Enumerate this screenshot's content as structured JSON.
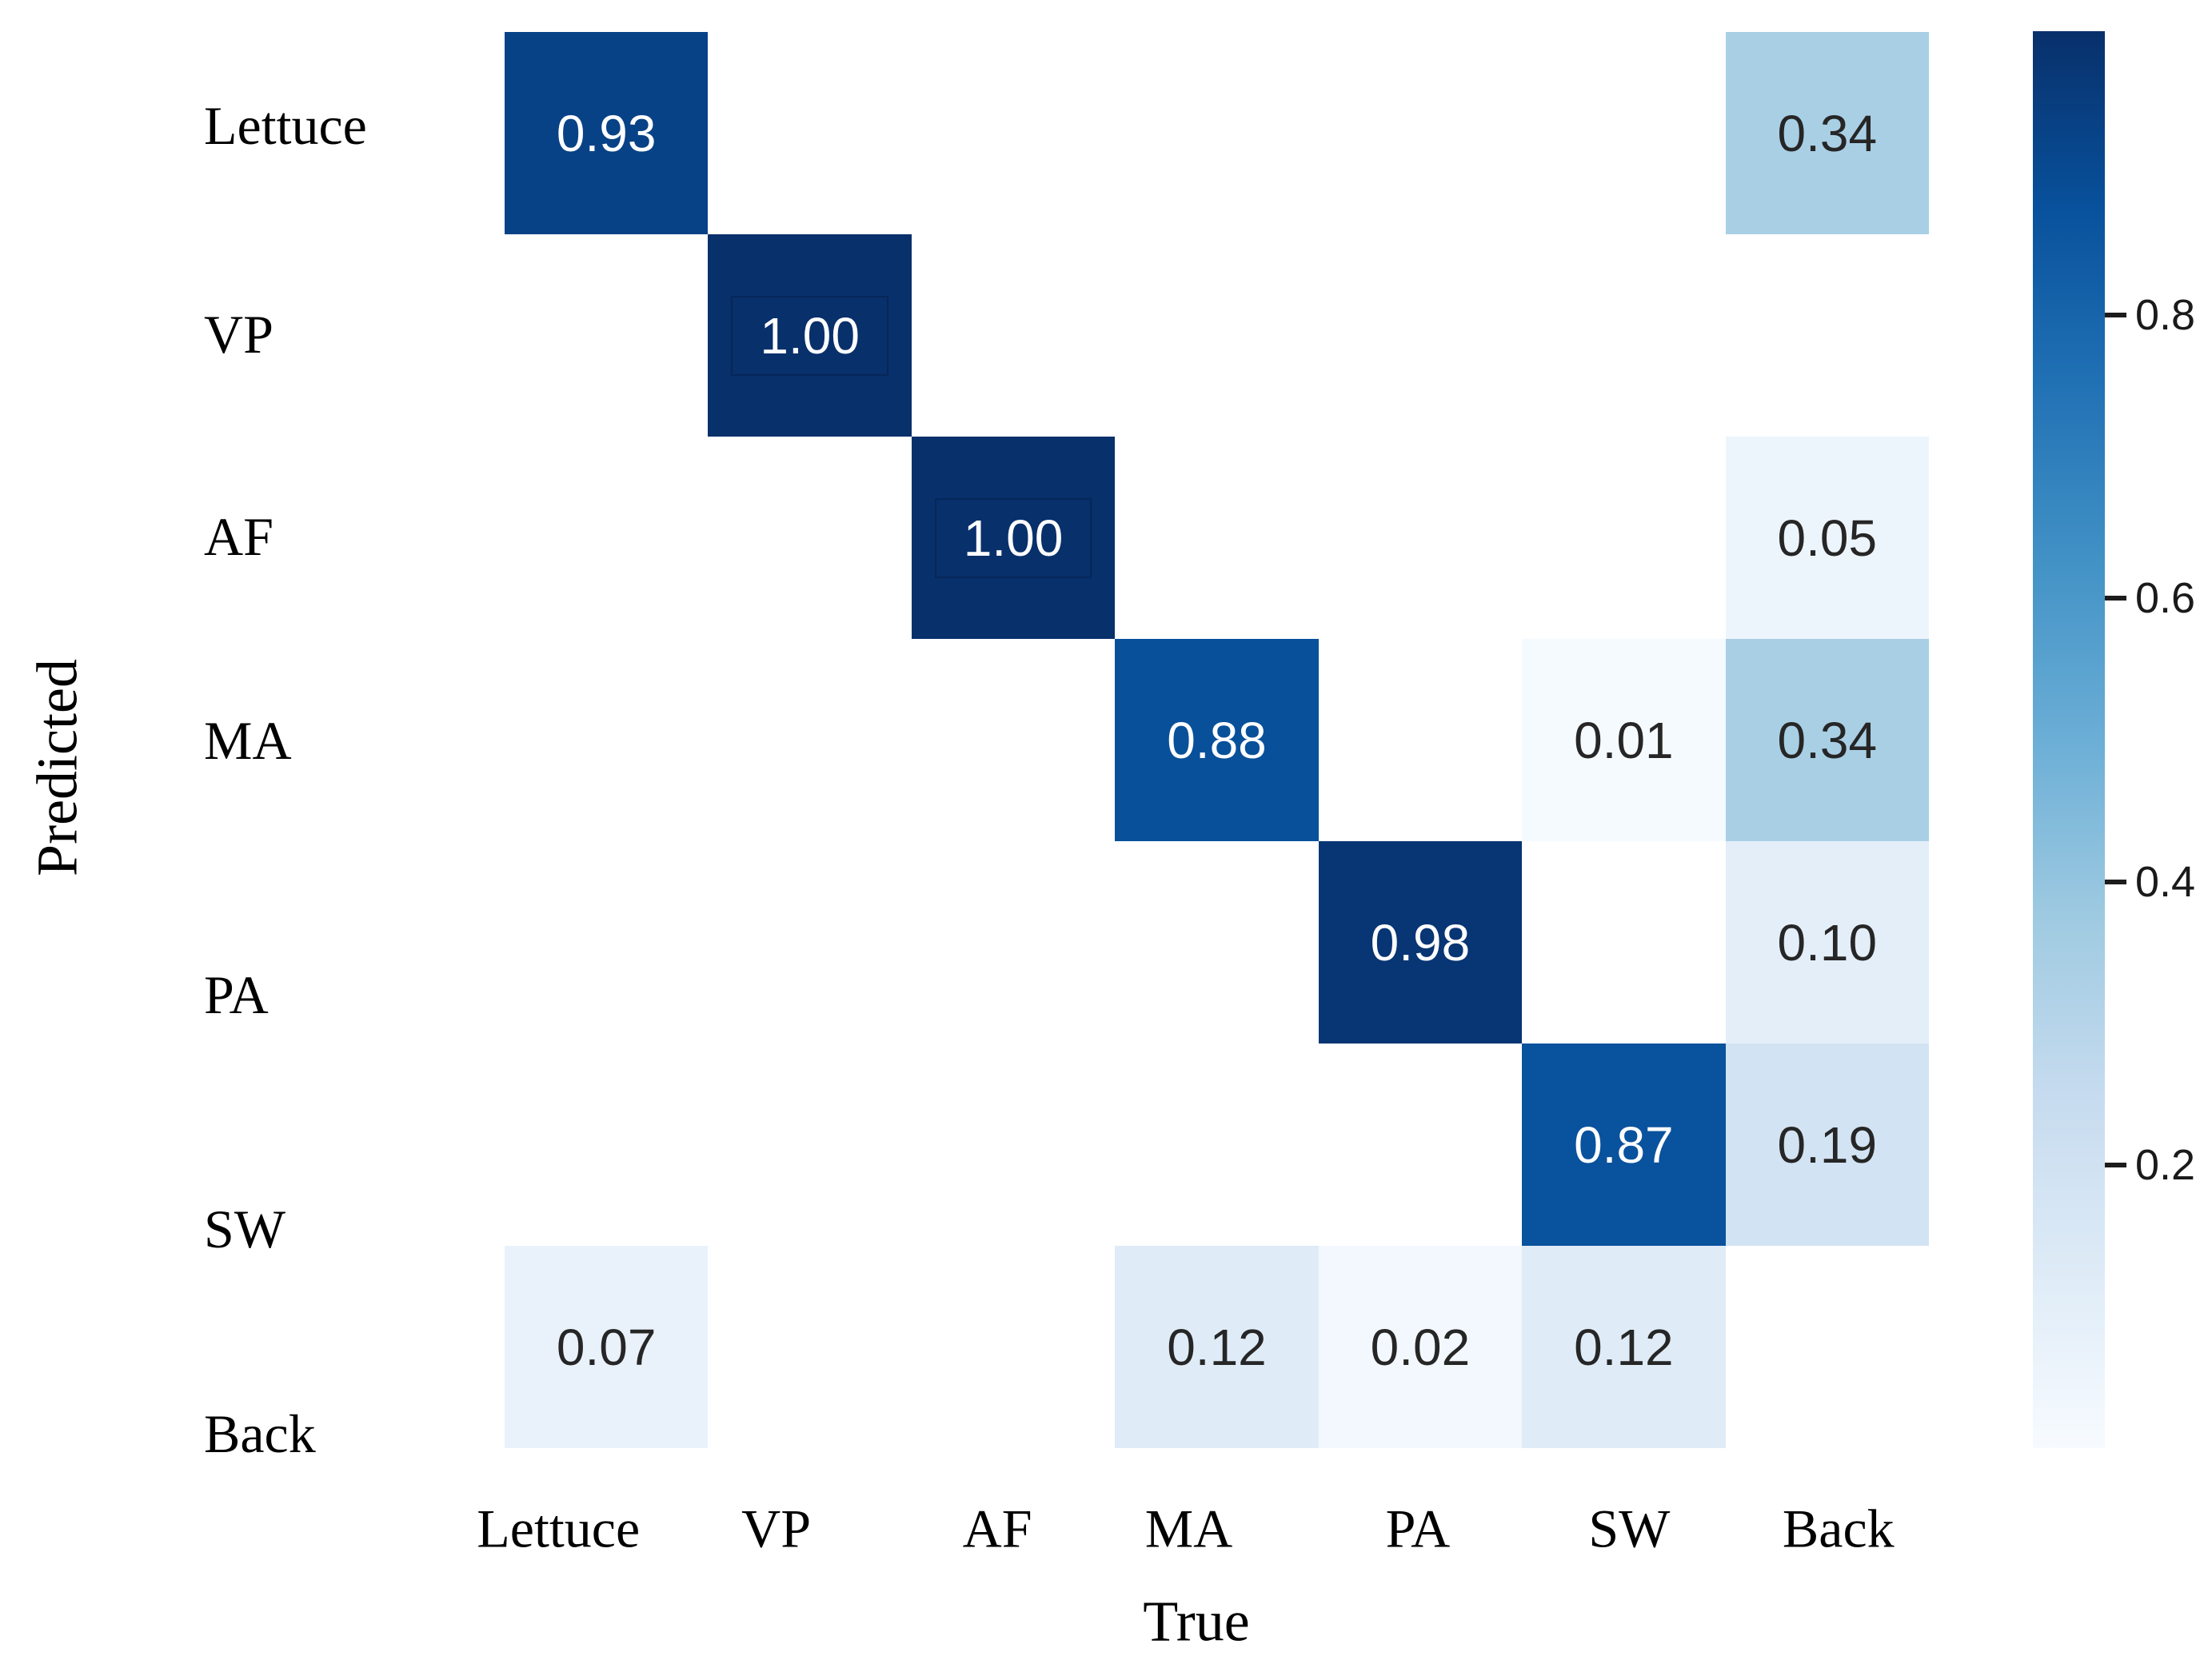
{
  "chart_data": {
    "type": "heatmap",
    "subtype": "confusion-matrix",
    "xlabel": "True",
    "ylabel": "Predicted",
    "x_categories": [
      "Lettuce",
      "VP",
      "AF",
      "MA",
      "PA",
      "SW",
      "Back"
    ],
    "y_categories": [
      "Lettuce",
      "VP",
      "AF",
      "MA",
      "PA",
      "SW",
      "Back"
    ],
    "matrix": [
      [
        0.93,
        0,
        0,
        0,
        0,
        0,
        0.34
      ],
      [
        0,
        1.0,
        0,
        0,
        0,
        0,
        0
      ],
      [
        0,
        0,
        1.0,
        0,
        0,
        0,
        0.05
      ],
      [
        0,
        0,
        0,
        0.88,
        0,
        0.01,
        0.34
      ],
      [
        0,
        0,
        0,
        0,
        0.98,
        0,
        0.1
      ],
      [
        0,
        0,
        0,
        0,
        0,
        0.87,
        0.19
      ],
      [
        0.07,
        0,
        0,
        0.12,
        0.02,
        0.12,
        0
      ]
    ],
    "cells": [
      {
        "row": 0,
        "col": 0,
        "value": 0.93,
        "label": "0.93",
        "color": "#084286",
        "boxed": false
      },
      {
        "row": 0,
        "col": 6,
        "value": 0.34,
        "label": "0.34",
        "color": "#a9cfe5",
        "boxed": false
      },
      {
        "row": 1,
        "col": 1,
        "value": 1.0,
        "label": "1.00",
        "color": "#08306b",
        "boxed": true
      },
      {
        "row": 2,
        "col": 2,
        "value": 1.0,
        "label": "1.00",
        "color": "#08306b",
        "boxed": true
      },
      {
        "row": 2,
        "col": 6,
        "value": 0.05,
        "label": "0.05",
        "color": "#edf5fc",
        "boxed": false
      },
      {
        "row": 3,
        "col": 3,
        "value": 0.88,
        "label": "0.88",
        "color": "#08509a",
        "boxed": false
      },
      {
        "row": 3,
        "col": 5,
        "value": 0.01,
        "label": "0.01",
        "color": "#f5fafe",
        "boxed": false
      },
      {
        "row": 3,
        "col": 6,
        "value": 0.34,
        "label": "0.34",
        "color": "#a9cfe5",
        "boxed": false
      },
      {
        "row": 4,
        "col": 4,
        "value": 0.98,
        "label": "0.98",
        "color": "#083573",
        "boxed": false
      },
      {
        "row": 4,
        "col": 6,
        "value": 0.1,
        "label": "0.10",
        "color": "#e3eef9",
        "boxed": false
      },
      {
        "row": 5,
        "col": 5,
        "value": 0.87,
        "label": "0.87",
        "color": "#09529d",
        "boxed": false
      },
      {
        "row": 5,
        "col": 6,
        "value": 0.19,
        "label": "0.19",
        "color": "#d2e3f3",
        "boxed": false
      },
      {
        "row": 6,
        "col": 0,
        "value": 0.07,
        "label": "0.07",
        "color": "#e9f2fb",
        "boxed": false
      },
      {
        "row": 6,
        "col": 3,
        "value": 0.12,
        "label": "0.12",
        "color": "#dfecf7",
        "boxed": false
      },
      {
        "row": 6,
        "col": 4,
        "value": 0.02,
        "label": "0.02",
        "color": "#f3f8fe",
        "boxed": false
      },
      {
        "row": 6,
        "col": 5,
        "value": 0.12,
        "label": "0.12",
        "color": "#dfecf7",
        "boxed": false
      }
    ],
    "empty_cell_color": "#ffffff",
    "annotation_text_dark": "#262626",
    "annotation_text_light": "#ffffff",
    "colorbar": {
      "position": "right",
      "colormap": "Blues",
      "vmin": 0,
      "vmax": 1,
      "top_color": "#08306b",
      "bottom_color": "#f7fbff",
      "ticks": [
        {
          "value": 0.8,
          "label": "0.8"
        },
        {
          "value": 0.6,
          "label": "0.6"
        },
        {
          "value": 0.4,
          "label": "0.4"
        },
        {
          "value": 0.2,
          "label": "0.2"
        }
      ]
    },
    "grid": false,
    "legend": false
  }
}
